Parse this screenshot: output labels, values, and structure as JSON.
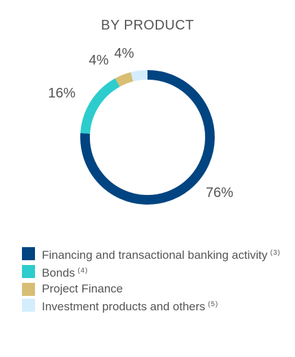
{
  "chart_data": {
    "type": "pie",
    "title": "BY PRODUCT",
    "categories": [
      "Financing and transactional banking activity",
      "Bonds",
      "Project Finance",
      "Investment products and others"
    ],
    "values": [
      76,
      16,
      4,
      4
    ],
    "value_labels": [
      "76%",
      "16%",
      "4%",
      "4%"
    ],
    "footnotes": [
      "(3)",
      "(4)",
      "",
      "(5)"
    ],
    "colors": [
      "#004481",
      "#2dcccd",
      "#d8be75",
      "#d4edfc"
    ],
    "donut": true,
    "legend_position": "bottom"
  }
}
